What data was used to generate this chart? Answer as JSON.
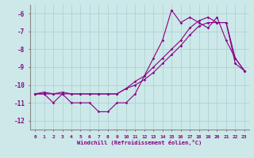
{
  "xlabel": "Windchill (Refroidissement éolien,°C)",
  "background_color": "#cce8e8",
  "grid_color": "#aacfcf",
  "line_color": "#880088",
  "x_values": [
    0,
    1,
    2,
    3,
    4,
    5,
    6,
    7,
    8,
    9,
    10,
    11,
    12,
    13,
    14,
    15,
    16,
    17,
    18,
    19,
    20,
    21,
    22,
    23
  ],
  "line1_y": [
    -10.5,
    -10.5,
    -11.0,
    -10.5,
    -11.0,
    -11.0,
    -11.0,
    -11.5,
    -11.5,
    -11.0,
    -11.0,
    -10.5,
    -9.5,
    -8.5,
    -7.5,
    -5.8,
    -6.5,
    -6.2,
    -6.5,
    -6.8,
    -6.2,
    -7.5,
    -8.5,
    -9.2
  ],
  "line2_y": [
    -10.5,
    -10.5,
    -10.5,
    -10.5,
    -10.5,
    -10.5,
    -10.5,
    -10.5,
    -10.5,
    -10.5,
    -10.2,
    -10.0,
    -9.7,
    -9.3,
    -8.8,
    -8.3,
    -7.8,
    -7.2,
    -6.7,
    -6.5,
    -6.5,
    -6.5,
    -8.5,
    -9.2
  ],
  "line3_y": [
    -10.5,
    -10.4,
    -10.5,
    -10.4,
    -10.5,
    -10.5,
    -10.5,
    -10.5,
    -10.5,
    -10.5,
    -10.2,
    -9.8,
    -9.5,
    -9.0,
    -8.5,
    -8.0,
    -7.5,
    -6.8,
    -6.4,
    -6.2,
    -6.5,
    -6.5,
    -8.8,
    -9.2
  ],
  "ylim": [
    -12.5,
    -5.5
  ],
  "xlim": [
    -0.5,
    23.5
  ],
  "yticks": [
    -12,
    -11,
    -10,
    -9,
    -8,
    -7,
    -6
  ],
  "xticks": [
    0,
    1,
    2,
    3,
    4,
    5,
    6,
    7,
    8,
    9,
    10,
    11,
    12,
    13,
    14,
    15,
    16,
    17,
    18,
    19,
    20,
    21,
    22,
    23
  ],
  "marker": "D",
  "markersize": 1.8,
  "linewidth": 0.8
}
